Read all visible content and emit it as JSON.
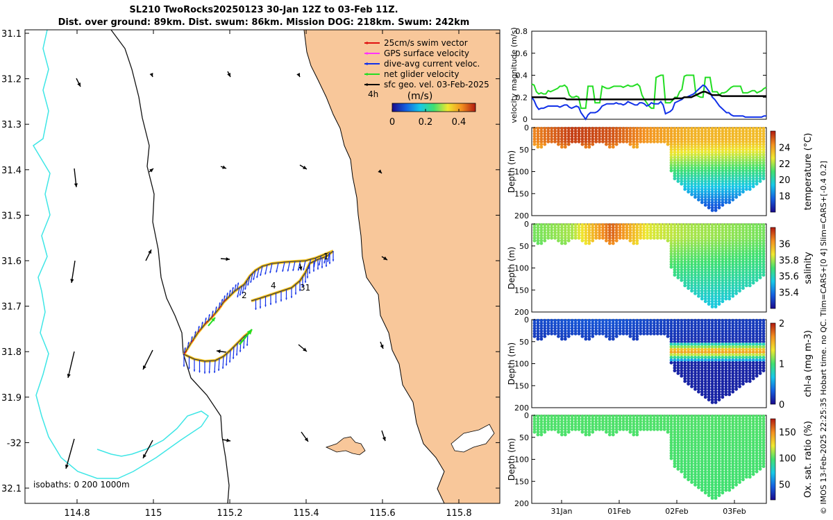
{
  "header": {
    "title_line1": "SL210 TwoRocks20250123 30-Jan 12Z to 03-Feb 11Z.",
    "title_line2": "Dist. over ground: 89km. Dist. swum: 86km. Mission DOG: 218km. Swum: 242km"
  },
  "credit": "© IMOS 13-Feb-2025 22:25:35 Hobart time. no QC. Tlim=CARS+[0 4] Slim=CARS+[-0.4 0.2]",
  "colors": {
    "land": "#f8c79a",
    "isobath_200": "#111111",
    "isobath_1000": "#3ee6e6",
    "swim_vector": "#e01010",
    "gps_velocity": "#ff33ff",
    "dive_avg_current": "#1030e8",
    "net_glider_velocity": "#22dd22",
    "sfc_geo_velocity": "#000000",
    "track": "#f2c01e"
  },
  "map": {
    "lon_ticks": [
      "114.8",
      "115",
      "115.2",
      "115.4",
      "115.6",
      "115.8"
    ],
    "lat_ticks": [
      "31.1",
      "31.2",
      "31.3",
      "31.4",
      "31.5",
      "31.6",
      "31.7",
      "31.8",
      "31.9",
      "-32",
      "32.1"
    ],
    "isobath_label": "isobaths: 0   200  1000m",
    "legend": [
      {
        "label": "25cm/s swim vector",
        "color": "#e01010"
      },
      {
        "label": "GPS surface velocity",
        "color": "#ff33ff"
      },
      {
        "label": "dive-avg current veloc.",
        "color": "#1030e8"
      },
      {
        "label": "net glider velocity",
        "color": "#22dd22"
      },
      {
        "label": "sfc geo. vel. 03-Feb-2025",
        "color": "#000000"
      }
    ],
    "interval_label": "4h",
    "colorbar": {
      "title": "(m/s)",
      "ticks": [
        "0",
        "0.2",
        "0.4"
      ],
      "min": 0,
      "max": 0.5,
      "stops": [
        "#1a0a8c",
        "#1560e0",
        "#17c8e8",
        "#40e070",
        "#f0e830",
        "#f39020",
        "#b01a10"
      ]
    },
    "track_labels": [
      "1",
      "2",
      "31",
      "4"
    ]
  },
  "chart_data": [
    {
      "type": "line",
      "title": "",
      "ylabel": "velocity magnitude (m/s)",
      "x": [
        0,
        1,
        2,
        3,
        4,
        5,
        6,
        7,
        8,
        9,
        10,
        11,
        12,
        13,
        14,
        15,
        16,
        17,
        18,
        19,
        20,
        21,
        22,
        23,
        24,
        25,
        26,
        27,
        28,
        29,
        30,
        31,
        32,
        33,
        34,
        35,
        36,
        37,
        38,
        39,
        40,
        41,
        42,
        43,
        44,
        45,
        46,
        47,
        48,
        49,
        50,
        51,
        52,
        53,
        54,
        55,
        56,
        57,
        58,
        59,
        60,
        61,
        62,
        63,
        64,
        65,
        66,
        67,
        68,
        69,
        70,
        71,
        72,
        73,
        74,
        75,
        76,
        77,
        78,
        79,
        80,
        81,
        82,
        83,
        84,
        85,
        86,
        87,
        88,
        89,
        90,
        91,
        92,
        93,
        94,
        95,
        96,
        97,
        98,
        99,
        100
      ],
      "xlim": [
        0,
        100
      ],
      "ylim": [
        0,
        0.8
      ],
      "yticks": [
        0,
        0.2,
        0.4,
        0.6,
        0.8
      ],
      "series": [
        {
          "name": "net glider velocity",
          "color": "#22dd22",
          "values": [
            0.32,
            0.31,
            0.25,
            0.23,
            0.24,
            0.23,
            0.23,
            0.26,
            0.25,
            0.26,
            0.27,
            0.28,
            0.3,
            0.3,
            0.31,
            0.29,
            0.22,
            0.2,
            0.2,
            0.21,
            0.2,
            0.1,
            0.1,
            0.1,
            0.3,
            0.3,
            0.3,
            0.15,
            0.15,
            0.15,
            0.3,
            0.29,
            0.28,
            0.28,
            0.29,
            0.3,
            0.3,
            0.3,
            0.3,
            0.29,
            0.3,
            0.31,
            0.3,
            0.3,
            0.31,
            0.32,
            0.3,
            0.22,
            0.18,
            0.15,
            0.12,
            0.1,
            0.1,
            0.38,
            0.39,
            0.4,
            0.4,
            0.15,
            0.15,
            0.15,
            0.17,
            0.2,
            0.2,
            0.25,
            0.27,
            0.39,
            0.4,
            0.4,
            0.4,
            0.4,
            0.22,
            0.21,
            0.2,
            0.2,
            0.38,
            0.38,
            0.38,
            0.25,
            0.25,
            0.25,
            0.22,
            0.24,
            0.24,
            0.25,
            0.27,
            0.29,
            0.3,
            0.3,
            0.3,
            0.3,
            0.24,
            0.24,
            0.24,
            0.25,
            0.26,
            0.26,
            0.24,
            0.25,
            0.26,
            0.28,
            0.29
          ]
        },
        {
          "name": "dive-avg current",
          "color": "#1030e8",
          "values": [
            0.2,
            0.17,
            0.12,
            0.09,
            0.1,
            0.1,
            0.11,
            0.12,
            0.12,
            0.12,
            0.12,
            0.12,
            0.11,
            0.12,
            0.13,
            0.13,
            0.11,
            0.1,
            0.11,
            0.12,
            0.11,
            0.06,
            0.03,
            0.0,
            0.04,
            0.06,
            0.06,
            0.06,
            0.07,
            0.09,
            0.12,
            0.13,
            0.14,
            0.14,
            0.14,
            0.14,
            0.15,
            0.14,
            0.14,
            0.13,
            0.14,
            0.16,
            0.15,
            0.14,
            0.13,
            0.13,
            0.15,
            0.15,
            0.14,
            0.12,
            0.13,
            0.15,
            0.14,
            0.14,
            0.14,
            0.16,
            0.13,
            0.05,
            0.06,
            0.07,
            0.09,
            0.15,
            0.16,
            0.17,
            0.18,
            0.2,
            0.2,
            0.21,
            0.22,
            0.23,
            0.25,
            0.27,
            0.29,
            0.31,
            0.3,
            0.27,
            0.24,
            0.2,
            0.18,
            0.15,
            0.12,
            0.1,
            0.08,
            0.06,
            0.06,
            0.04,
            0.03,
            0.03,
            0.03,
            0.03,
            0.03,
            0.02,
            0.02,
            0.02,
            0.02,
            0.02,
            0.02,
            0.02,
            0.02,
            0.03,
            0.03
          ]
        },
        {
          "name": "sfc geo. vel.",
          "color": "#000000",
          "values": [
            0.2,
            0.2,
            0.2,
            0.2,
            0.2,
            0.2,
            0.2,
            0.19,
            0.19,
            0.19,
            0.19,
            0.19,
            0.19,
            0.19,
            0.19,
            0.18,
            0.18,
            0.18,
            0.18,
            0.18,
            0.18,
            0.18,
            0.18,
            0.18,
            0.18,
            0.18,
            0.18,
            0.18,
            0.18,
            0.18,
            0.18,
            0.18,
            0.18,
            0.18,
            0.18,
            0.18,
            0.18,
            0.18,
            0.18,
            0.18,
            0.18,
            0.18,
            0.18,
            0.18,
            0.18,
            0.18,
            0.18,
            0.18,
            0.18,
            0.18,
            0.18,
            0.18,
            0.18,
            0.18,
            0.18,
            0.18,
            0.18,
            0.18,
            0.18,
            0.18,
            0.18,
            0.19,
            0.19,
            0.19,
            0.19,
            0.2,
            0.2,
            0.2,
            0.2,
            0.21,
            0.22,
            0.23,
            0.24,
            0.25,
            0.25,
            0.24,
            0.23,
            0.22,
            0.22,
            0.22,
            0.22,
            0.21,
            0.21,
            0.21,
            0.21,
            0.21,
            0.21,
            0.21,
            0.21,
            0.21,
            0.21,
            0.21,
            0.21,
            0.21,
            0.21,
            0.21,
            0.21,
            0.21,
            0.21,
            0.21,
            0.21
          ]
        }
      ]
    },
    {
      "type": "heatmap",
      "variable": "temperature",
      "cbar_label": "temperature (°C)",
      "ylabel": "Depth (m)",
      "ylim": [
        200,
        0
      ],
      "yticks": [
        "0",
        "50",
        "100",
        "150",
        "200"
      ],
      "clim": [
        16,
        26
      ],
      "cbar_ticks": [
        "18",
        "20",
        "22",
        "24"
      ],
      "cbar_tick_values": [
        18,
        20,
        22,
        24
      ],
      "surface_values": [
        24.5,
        25.5,
        25.2,
        24.2,
        23.7,
        23.6,
        23.5
      ],
      "deep_value": 17.5
    },
    {
      "type": "heatmap",
      "variable": "salinity",
      "cbar_label": "salinity",
      "ylabel": "Depth (m)",
      "ylim": [
        200,
        0
      ],
      "yticks": [
        "0",
        "50",
        "100",
        "150",
        "200"
      ],
      "clim": [
        35.2,
        36.2
      ],
      "cbar_ticks": [
        "35.4",
        "35.6",
        "35.8",
        "36"
      ],
      "cbar_tick_values": [
        35.4,
        35.6,
        35.8,
        36.0
      ],
      "surface_values": [
        35.75,
        35.8,
        36.1,
        35.85,
        35.8,
        35.78,
        35.75
      ],
      "deep_value": 35.55
    },
    {
      "type": "heatmap",
      "variable": "chl-a",
      "cbar_label": "chl-a (mg m-3)",
      "ylabel": "Depth (m)",
      "ylim": [
        200,
        0
      ],
      "yticks": [
        "0",
        "50",
        "100",
        "150",
        "200"
      ],
      "clim": [
        0,
        2
      ],
      "cbar_ticks": [
        "0",
        "1",
        "2"
      ],
      "cbar_tick_values": [
        0,
        1,
        2
      ],
      "surface_values": [
        0.25,
        0.3,
        0.3,
        0.25,
        0.2,
        0.2,
        0.2
      ],
      "deep_value": 0.1,
      "max_value": 1.7
    },
    {
      "type": "heatmap",
      "variable": "oxygen saturation",
      "cbar_label": "Ox. sat. ratio (%)",
      "ylabel": "Depth (m)",
      "ylim": [
        200,
        0
      ],
      "yticks": [
        "0",
        "50",
        "100",
        "150",
        "200"
      ],
      "clim": [
        20,
        175
      ],
      "cbar_ticks": [
        "50",
        "100",
        "150"
      ],
      "cbar_tick_values": [
        50,
        100,
        150
      ],
      "surface_values": [
        100,
        100,
        100,
        100,
        100,
        100,
        100
      ],
      "deep_value": 97,
      "xtick_labels": [
        "31Jan",
        "01Feb",
        "02Feb",
        "03Feb"
      ]
    }
  ]
}
